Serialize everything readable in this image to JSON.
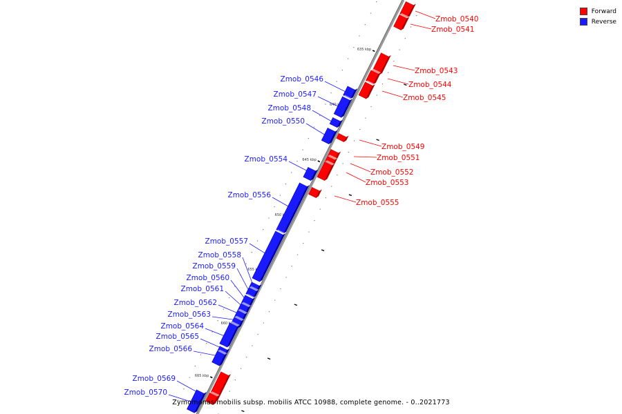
{
  "legend": {
    "forward_label": "Forward",
    "reverse_label": "Reverse",
    "forward_color": "#ff0000",
    "reverse_color": "#1a1aff"
  },
  "caption": "Zymomonas mobilis subsp. mobilis ATCC 10988, complete genome. - 0..2021773",
  "ruler": {
    "ticks": [
      "635 kbp",
      "640 kbp",
      "645 kbp",
      "650 kbp",
      "655 kbp",
      "660 kbp",
      "665 kbp"
    ]
  },
  "forward_genes": [
    "Zmob_0540",
    "Zmob_0541",
    "Zmob_0543",
    "Zmob_0544",
    "Zmob_0545",
    "Zmob_0549",
    "Zmob_0551",
    "Zmob_0552",
    "Zmob_0553",
    "Zmob_0555"
  ],
  "reverse_genes": [
    "Zmob_0546",
    "Zmob_0547",
    "Zmob_0548",
    "Zmob_0550",
    "Zmob_0554",
    "Zmob_0556",
    "Zmob_0557",
    "Zmob_0558",
    "Zmob_0559",
    "Zmob_0560",
    "Zmob_0561",
    "Zmob_0562",
    "Zmob_0563",
    "Zmob_0564",
    "Zmob_0565",
    "Zmob_0566",
    "Zmob_0569",
    "Zmob_0570"
  ]
}
